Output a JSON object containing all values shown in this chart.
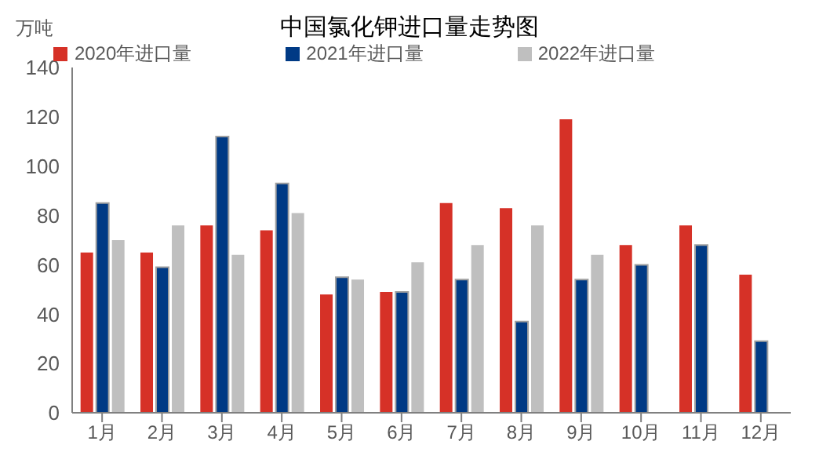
{
  "chart_data": {
    "type": "bar",
    "title": "中国氯化钾进口量走势图",
    "ylabel": "万吨",
    "categories": [
      "1月",
      "2月",
      "3月",
      "4月",
      "5月",
      "6月",
      "7月",
      "8月",
      "9月",
      "10月",
      "11月",
      "12月"
    ],
    "series": [
      {
        "name": "2020年进口量",
        "color": "#d63127",
        "values": [
          65,
          65,
          76,
          74,
          48,
          49,
          85,
          83,
          119,
          68,
          76,
          56
        ]
      },
      {
        "name": "2021年进口量",
        "color": "#003a85",
        "values": [
          85,
          59,
          112,
          93,
          55,
          49,
          54,
          37,
          54,
          60,
          68,
          29
        ]
      },
      {
        "name": "2022年进口量",
        "color": "#bfbfbf",
        "values": [
          70,
          76,
          64,
          81,
          54,
          61,
          68,
          76,
          64,
          null,
          null,
          null
        ]
      }
    ],
    "ylim": [
      0,
      140
    ],
    "yticks": [
      0,
      20,
      40,
      60,
      80,
      100,
      120,
      140
    ],
    "grid": false,
    "legend": "top"
  }
}
